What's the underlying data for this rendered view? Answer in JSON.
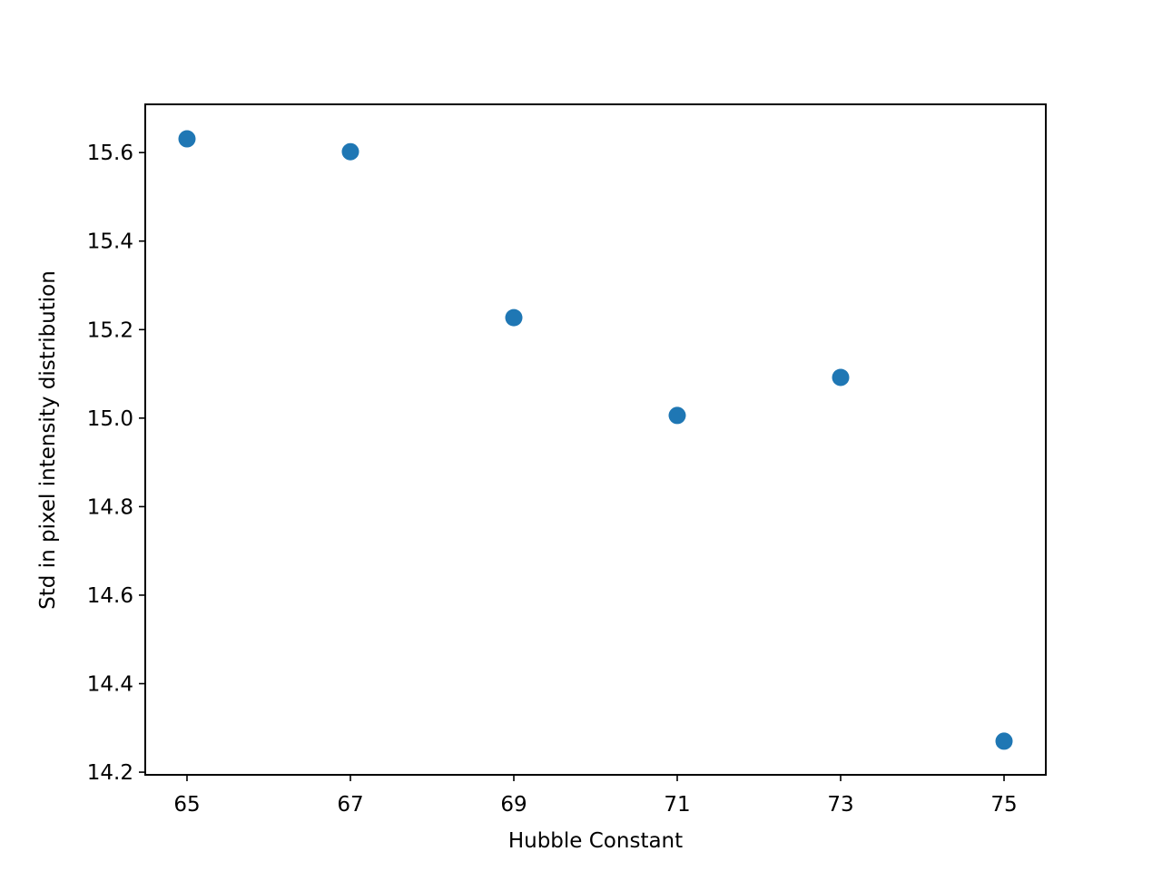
{
  "chart_data": {
    "type": "scatter",
    "x_label": "Hubble Constant",
    "y_label": "Std in pixel intensity distribution",
    "x": [
      65,
      67,
      69,
      71,
      73,
      75
    ],
    "series": [
      {
        "color": "#1f77b4",
        "values": [
          15.631,
          15.602,
          15.227,
          15.006,
          15.092,
          14.27
        ]
      }
    ],
    "xlim": [
      64.489,
      75.511
    ],
    "ylim": [
      14.194,
      15.709
    ],
    "xticks": [
      65,
      67,
      69,
      71,
      73,
      75
    ],
    "yticks": [
      14.2,
      14.4,
      14.6,
      14.8,
      {
        "value": 15,
        "label": "15.0"
      },
      15.2,
      15.4,
      15.6
    ],
    "grid": false
  }
}
